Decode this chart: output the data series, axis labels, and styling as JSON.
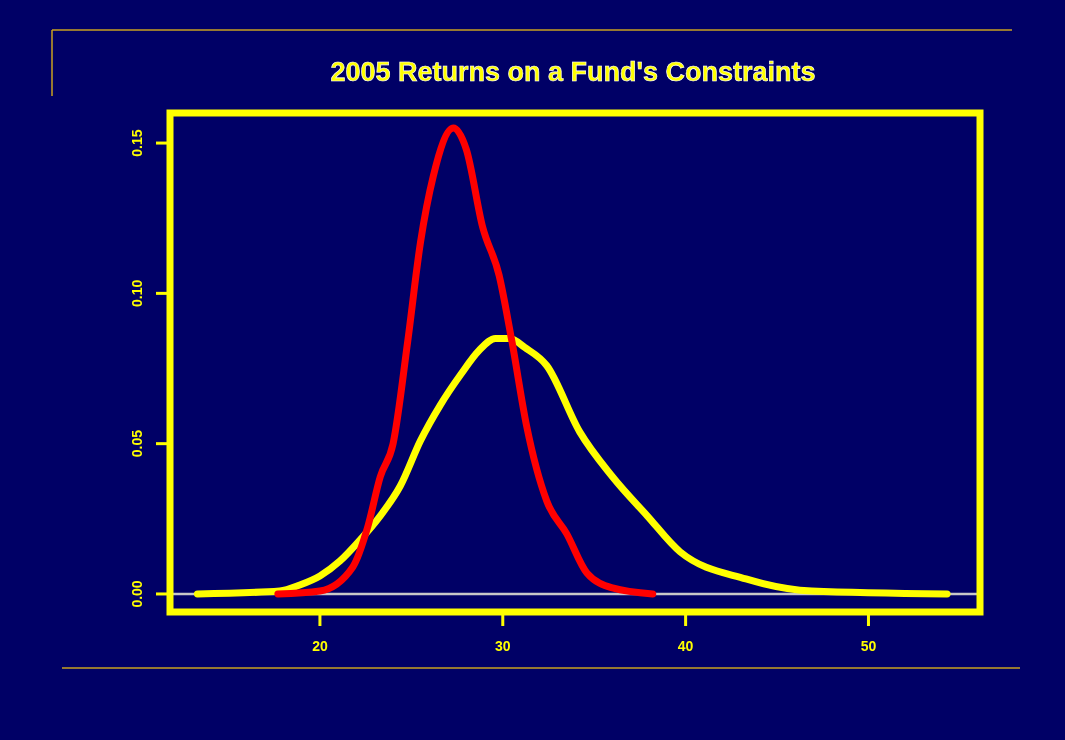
{
  "chart_data": {
    "type": "line",
    "title": "2005 Returns on a Fund's Constraints",
    "xlim": [
      11.8,
      56.1
    ],
    "xticks": [
      20,
      30,
      40,
      50
    ],
    "ylim": [
      -0.006,
      0.16
    ],
    "yticks": [
      {
        "value": 0,
        "label": "0.00"
      },
      {
        "value": 0.05,
        "label": "0.05"
      },
      {
        "value": 0.1,
        "label": "0.10"
      },
      {
        "value": 0.15,
        "label": "0.15"
      }
    ],
    "grid": false,
    "line_style": "solid",
    "marker": "none",
    "ref_lines": [
      {
        "axis": "y",
        "value": 0,
        "color": "#c8c8c8"
      }
    ],
    "series": [
      {
        "color": "#ffff00",
        "x": [
          13.3,
          17.8,
          18.9,
          20,
          21.1,
          22.2,
          23.3,
          24.4,
          25.5,
          26.6,
          27.7,
          28.7,
          29.6,
          30.4,
          31.2,
          32.4,
          34.2,
          36.0,
          37.9,
          39.7,
          43.3,
          46.9,
          54.3
        ],
        "values": [
          0,
          0.001,
          0.003,
          0.006,
          0.011,
          0.018,
          0.026,
          0.036,
          0.051,
          0.063,
          0.073,
          0.081,
          0.085,
          0.085,
          0.082,
          0.076,
          0.054,
          0.039,
          0.026,
          0.014,
          0.005,
          0.001,
          0
        ]
      },
      {
        "color": "#ff0000",
        "x": [
          17.7,
          20,
          21.8,
          22.6,
          23.3,
          24.0,
          24.8,
          25.5,
          26.2,
          27.3,
          28.0,
          28.9,
          29.8,
          30.5,
          31.3,
          32.4,
          33.5,
          34.6,
          36.0,
          38.2
        ],
        "values": [
          0,
          0.001,
          0.009,
          0.022,
          0.039,
          0.05,
          0.084,
          0.117,
          0.139,
          0.155,
          0.148,
          0.122,
          0.106,
          0.084,
          0.056,
          0.031,
          0.02,
          0.007,
          0.002,
          0
        ]
      }
    ]
  }
}
